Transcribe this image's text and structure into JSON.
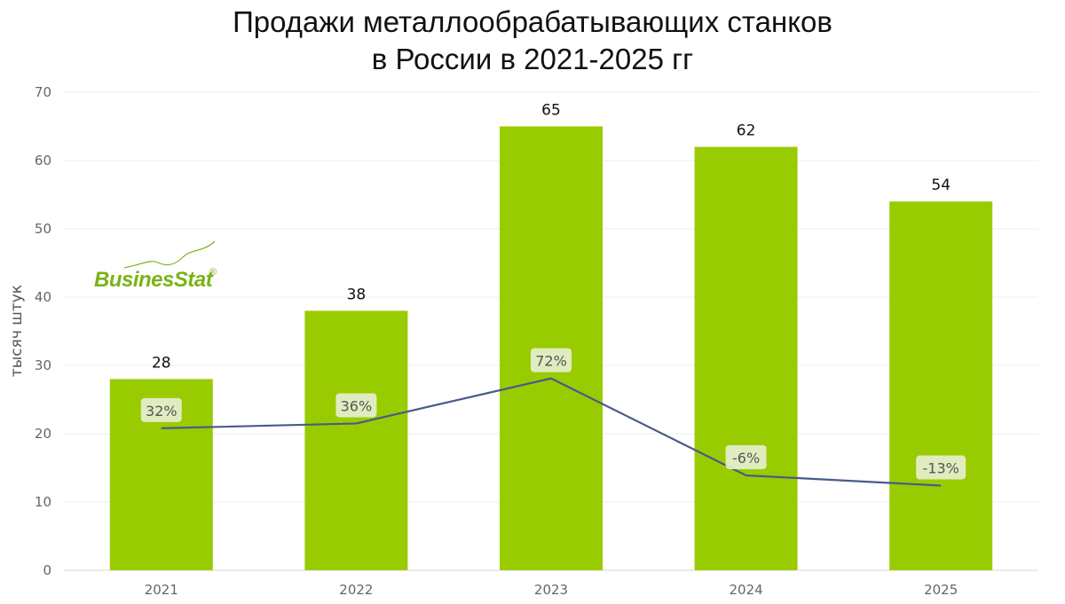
{
  "chart_data": {
    "type": "bar",
    "title_line1": "Продажи металлообрабатывающих станков",
    "title_line2": "в России в 2021-2025 гг",
    "ylabel": "тысяч штук",
    "ylim": [
      0,
      70
    ],
    "yticks": [
      0,
      10,
      20,
      30,
      40,
      50,
      60,
      70
    ],
    "grid": true,
    "categories": [
      "2021",
      "2022",
      "2023",
      "2024",
      "2025"
    ],
    "values": [
      28,
      38,
      65,
      62,
      54
    ],
    "value_labels": [
      "28",
      "38",
      "65",
      "62",
      "54"
    ],
    "bar_color": "#99cc00",
    "growth_line": {
      "color": "#4a5a8a",
      "labels": [
        "32%",
        "36%",
        "72%",
        "-6%",
        "-13%"
      ],
      "values_plotted": [
        20.8,
        21.5,
        28.1,
        13.9,
        12.4
      ]
    }
  },
  "logo": {
    "text": "BusinesStat",
    "mark": "®",
    "color": "#7ab317"
  }
}
